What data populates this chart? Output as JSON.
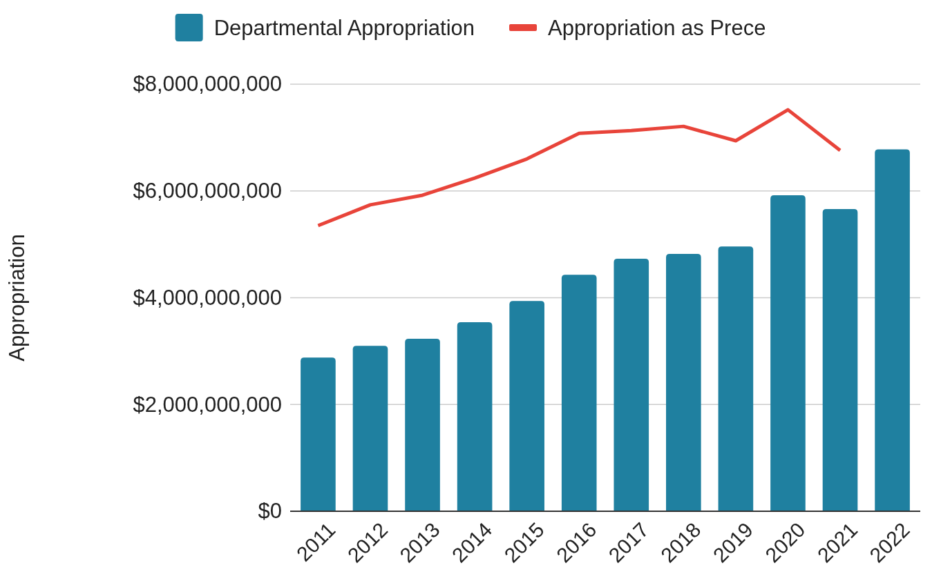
{
  "chart_data": {
    "type": "bar",
    "ylabel": "Appropriation",
    "categories": [
      "2011",
      "2012",
      "2013",
      "2014",
      "2015",
      "2016",
      "2017",
      "2018",
      "2019",
      "2020",
      "2021",
      "2022"
    ],
    "series": [
      {
        "name": "Departmental Appropriation",
        "color": "#1f80a0",
        "values": [
          2880000000,
          3100000000,
          3230000000,
          3540000000,
          3940000000,
          4430000000,
          4730000000,
          4820000000,
          4960000000,
          5920000000,
          5660000000,
          6780000000
        ]
      },
      {
        "name": "Appropriation as Prece",
        "type": "line",
        "color": "#e8443a",
        "values": [
          5350000000,
          5740000000,
          5920000000,
          6240000000,
          6600000000,
          7080000000,
          7130000000,
          7210000000,
          6940000000,
          7520000000,
          6760000000,
          null
        ]
      }
    ],
    "ylim": [
      0,
      8000000000
    ],
    "yticks": [
      {
        "value": 0,
        "label": "$0"
      },
      {
        "value": 2000000000,
        "label": "$2,000,000,000"
      },
      {
        "value": 4000000000,
        "label": "$4,000,000,000"
      },
      {
        "value": 6000000000,
        "label": "$6,000,000,000"
      },
      {
        "value": 8000000000,
        "label": "$8,000,000,000"
      }
    ],
    "grid": "y",
    "legend": "top"
  }
}
